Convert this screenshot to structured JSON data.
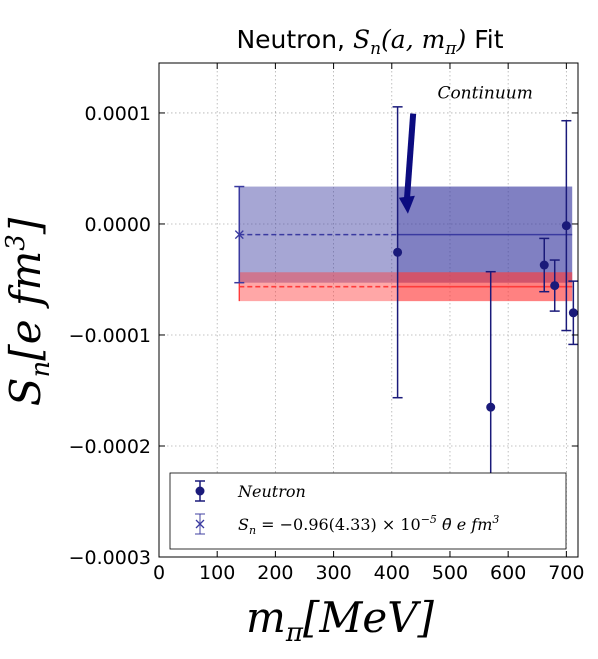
{
  "chart_data": {
    "type": "scatter",
    "title": "Neutron, ",
    "title_math": "S_n(a, m_π)",
    "title_math_parts": {
      "base": "S",
      "sub": "n",
      "args": "(a, m",
      "args_sub": "π",
      "close": ")",
      "suffix": "Fit"
    },
    "xlabel": {
      "base": "m",
      "sub": "π",
      "unit": "[MeV]"
    },
    "ylabel": {
      "base": "S",
      "sub": "n",
      "unit": "[e fm",
      "sup": "3",
      "close": "]"
    },
    "xlim": [
      0,
      720
    ],
    "ylim": [
      -0.0003,
      0.000145
    ],
    "x_ticks": [
      0,
      100,
      200,
      300,
      400,
      500,
      600,
      700
    ],
    "x_tick_labels": [
      "0",
      "100",
      "200",
      "300",
      "400",
      "500",
      "600",
      "700"
    ],
    "y_ticks": [
      0.0001,
      0.0,
      -0.0001,
      -0.0002,
      -0.0003
    ],
    "y_tick_labels": [
      "0.0001",
      "0.0000",
      "−0.0001",
      "−0.0002",
      "−0.0003"
    ],
    "grid": true,
    "series": [
      {
        "name": "Neutron",
        "marker": "circle",
        "color": "#1a1a7a",
        "points": [
          {
            "x": 410,
            "y": -2.55e-05,
            "err": 0.000131
          },
          {
            "x": 570,
            "y": -0.000165,
            "err": 0.000122
          },
          {
            "x": 662,
            "y": -3.7e-05,
            "err": 2.4e-05
          },
          {
            "x": 680,
            "y": -5.55e-05,
            "err": 2.3e-05
          },
          {
            "x": 700,
            "y": -1.5e-06,
            "err": 9.45e-05
          },
          {
            "x": 712,
            "y": -8e-05,
            "err": 2.85e-05
          }
        ]
      },
      {
        "name": "S_n = −0.96(4.33) × 10^{−5} θ̄ e fm^3",
        "marker": "x",
        "color": "#3a3aa0",
        "points": [
          {
            "x": 138,
            "y": -9.6e-06,
            "err": 4.33e-05
          }
        ]
      }
    ],
    "bands": [
      {
        "name": "blue-fit",
        "color": "#3a3aa0",
        "x_start": 138,
        "x_split": 410,
        "x_end": 710,
        "center": -9.6e-06,
        "lower": -5.29e-05,
        "upper": 3.37e-05
      },
      {
        "name": "red-fit",
        "color": "#ff3b3b",
        "x_start": 138,
        "x_split": 410,
        "x_end": 710,
        "center": -5.65e-05,
        "lower": -6.95e-05,
        "upper": -4.35e-05
      }
    ],
    "annotation": {
      "text": "Continuum",
      "arrow_from": [
        600,
        8.5e-05
      ],
      "arrow_to": [
        615,
        2e-06
      ]
    },
    "legend": {
      "placement": "lower-left",
      "entries": [
        {
          "label": "Neutron",
          "marker": "circle"
        },
        {
          "label_prefix": "S",
          "label_sub": "n",
          "label_rest": " = −0.96(4.33) × 10",
          "label_sup": "−5",
          "label_tail": " θ̄ e fm",
          "label_sup2": "3",
          "marker": "x"
        }
      ]
    }
  }
}
